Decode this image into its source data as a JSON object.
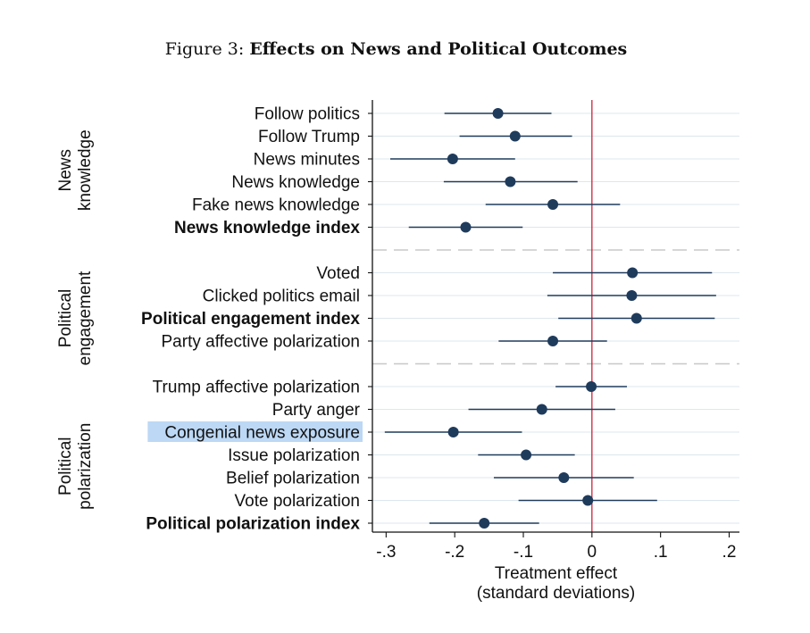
{
  "figure": {
    "caption_prefix": "Figure 3:",
    "caption_title": "Effects on News and Political Outcomes"
  },
  "chart_data": {
    "type": "scatter",
    "xlabel": [
      "Treatment effect",
      "(standard deviations)"
    ],
    "xlim": [
      -0.32,
      0.215
    ],
    "xticks": [
      -0.3,
      -0.2,
      -0.1,
      0,
      0.1,
      0.2
    ],
    "xtick_labels": [
      "-.3",
      "-.2",
      "-.1",
      "0",
      ".1",
      ".2"
    ],
    "reference_line_x": 0,
    "colors": {
      "marker": "#1f3b5c",
      "ref_line": "#c8102e",
      "grid": "#dde7ee",
      "highlight": "#bcd8f5"
    },
    "groups": [
      {
        "label": [
          "News",
          "knowledge"
        ],
        "rows": [
          0,
          5
        ]
      },
      {
        "label": [
          "Political",
          "engagement"
        ],
        "rows": [
          7,
          9
        ]
      },
      {
        "label": [
          "Political",
          "polarization"
        ],
        "rows": [
          11,
          18
        ]
      }
    ],
    "separators_after_rows": [
      5,
      9
    ],
    "highlighted_label": "Congenial news exposure",
    "estimates": [
      {
        "label": "Follow politics",
        "bold": false,
        "est": -0.137,
        "lo": -0.215,
        "hi": -0.059
      },
      {
        "label": "Follow Trump",
        "bold": false,
        "est": -0.112,
        "lo": -0.193,
        "hi": -0.029
      },
      {
        "label": "News minutes",
        "bold": false,
        "est": -0.203,
        "lo": -0.294,
        "hi": -0.112
      },
      {
        "label": "News knowledge",
        "bold": false,
        "est": -0.119,
        "lo": -0.216,
        "hi": -0.021
      },
      {
        "label": "Fake news knowledge",
        "bold": false,
        "est": -0.057,
        "lo": -0.155,
        "hi": 0.041
      },
      {
        "label": "News knowledge index",
        "bold": true,
        "est": -0.184,
        "lo": -0.267,
        "hi": -0.101
      },
      {
        "label": "Voted",
        "bold": false,
        "est": 0.059,
        "lo": -0.057,
        "hi": 0.175
      },
      {
        "label": "Clicked politics email",
        "bold": false,
        "est": 0.058,
        "lo": -0.065,
        "hi": 0.181
      },
      {
        "label": "Political engagement index",
        "bold": true,
        "est": 0.065,
        "lo": -0.049,
        "hi": 0.179
      },
      {
        "label": "Party affective polarization",
        "bold": false,
        "est": -0.057,
        "lo": -0.136,
        "hi": 0.022
      },
      {
        "label": "Trump affective polarization",
        "bold": false,
        "est": -0.001,
        "lo": -0.053,
        "hi": 0.051
      },
      {
        "label": "Party anger",
        "bold": false,
        "est": -0.073,
        "lo": -0.18,
        "hi": 0.034
      },
      {
        "label": "Congenial news exposure",
        "bold": false,
        "est": -0.202,
        "lo": -0.302,
        "hi": -0.102
      },
      {
        "label": "Issue polarization",
        "bold": false,
        "est": -0.096,
        "lo": -0.166,
        "hi": -0.025
      },
      {
        "label": "Belief polarization",
        "bold": false,
        "est": -0.041,
        "lo": -0.143,
        "hi": 0.061
      },
      {
        "label": "Vote polarization",
        "bold": false,
        "est": -0.006,
        "lo": -0.107,
        "hi": 0.095
      },
      {
        "label": "Political polarization index",
        "bold": true,
        "est": -0.157,
        "lo": -0.237,
        "hi": -0.077
      }
    ]
  }
}
